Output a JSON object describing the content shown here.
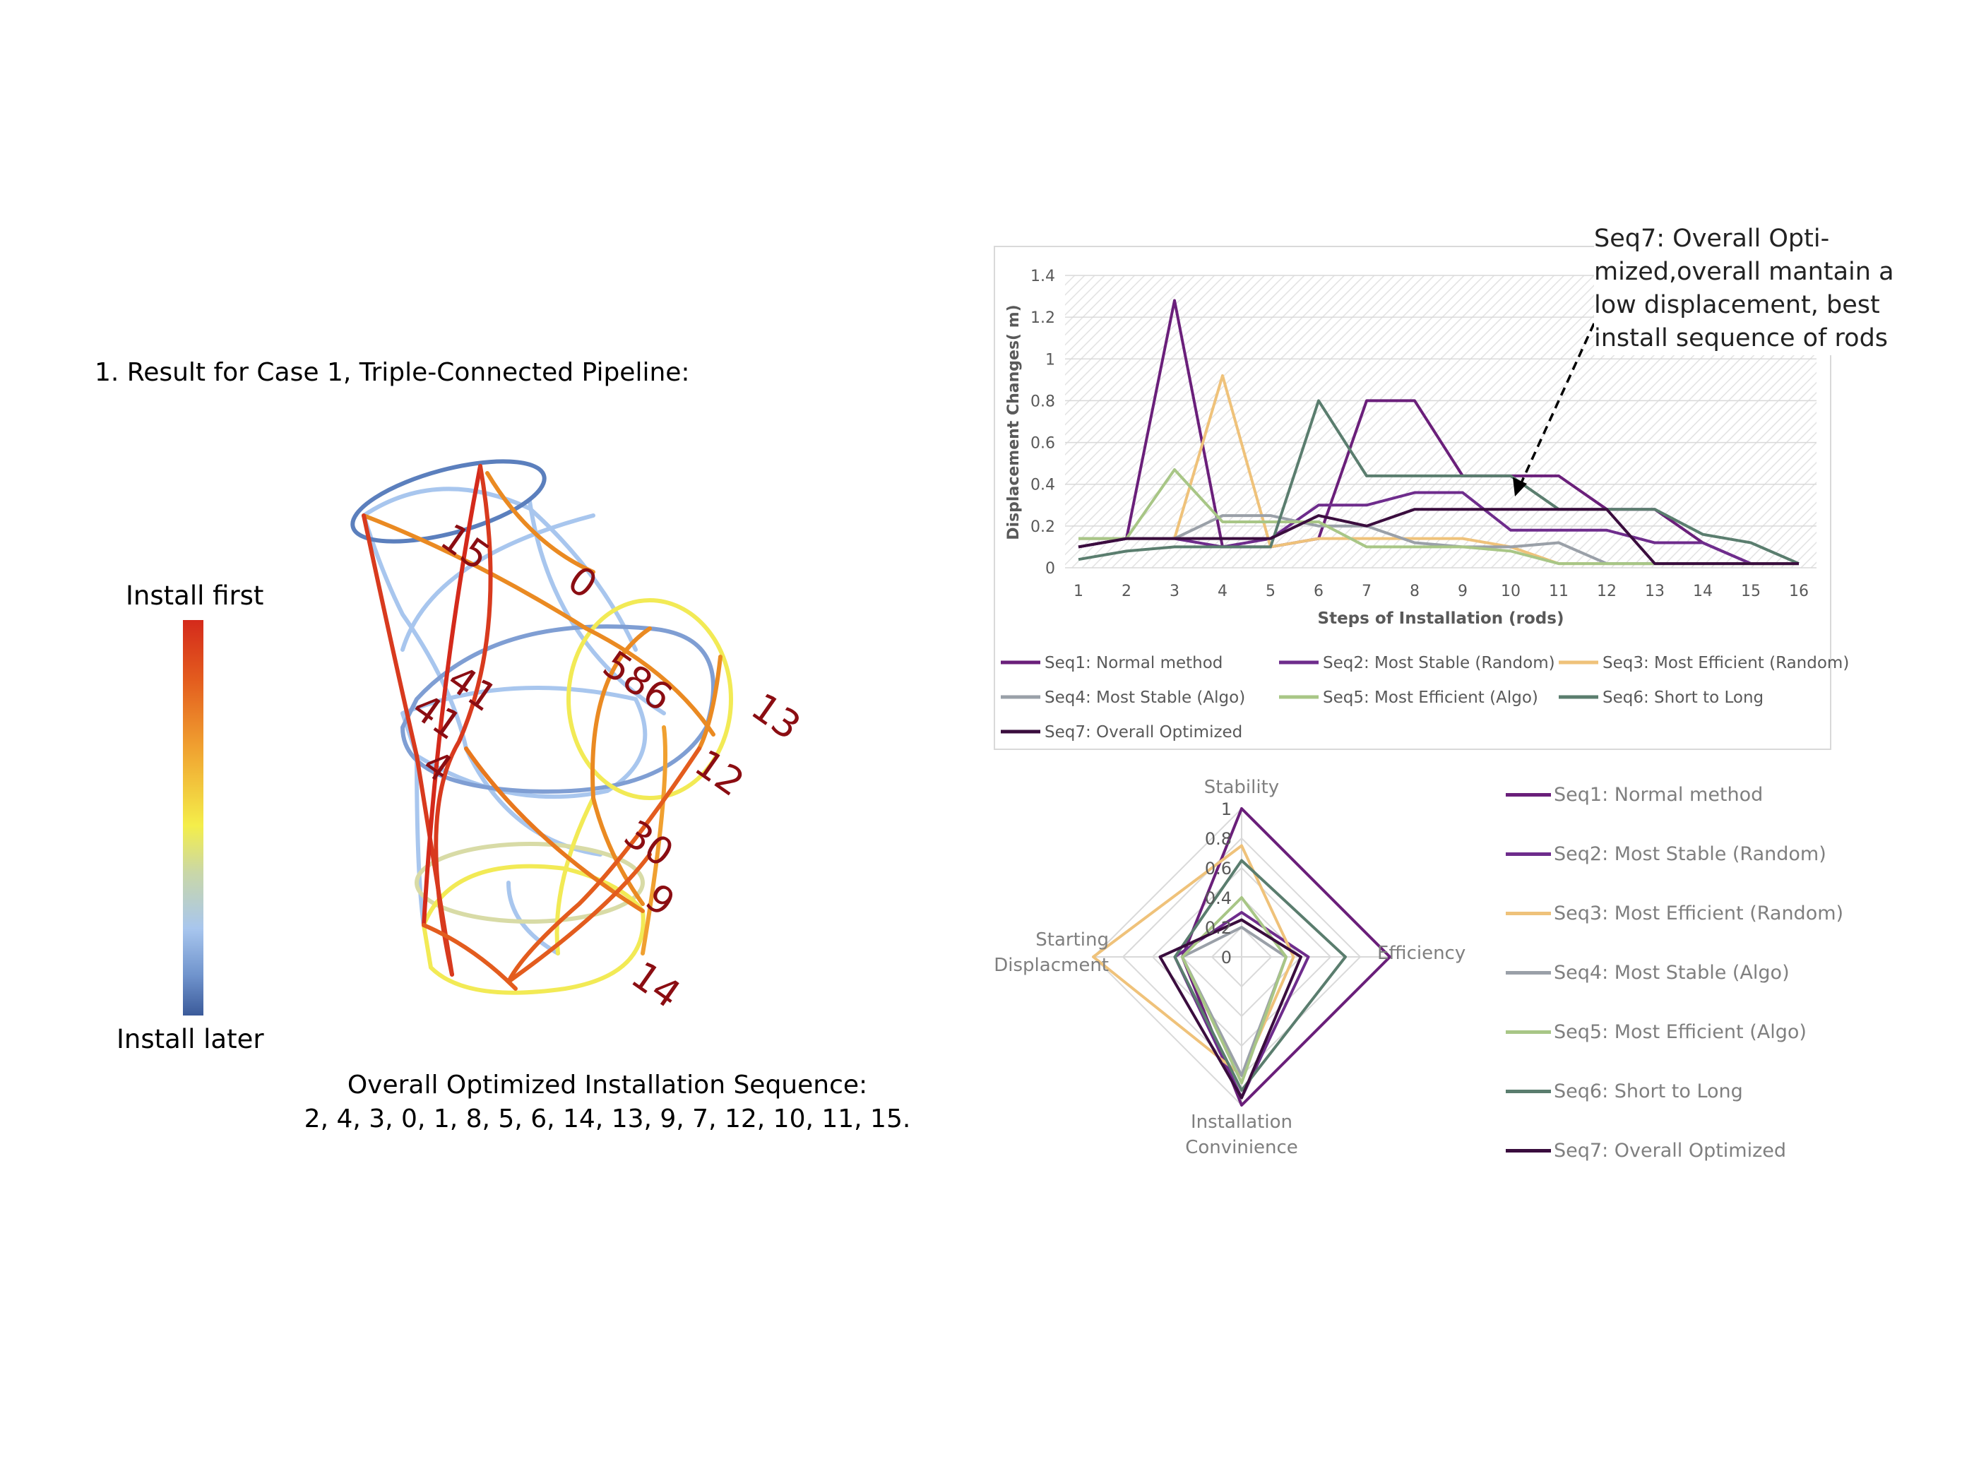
{
  "left": {
    "title": "1. Result for Case 1, Triple-Connected Pipeline:",
    "colorbar_top": "Install first",
    "colorbar_bottom": "Install later",
    "sequence_title": "Overall Optimized Installation Sequence:",
    "sequence_values": "2, 4, 3, 0, 1, 8, 5, 6, 14, 13, 9, 7, 12, 10, 11, 15.",
    "rod_labels": [
      "15",
      "0",
      "586",
      "13",
      "12",
      "30",
      "9",
      "14",
      "4",
      "41",
      "41"
    ]
  },
  "annotation": {
    "line1": "Seq7: Overall Opti-",
    "line2": "mized,overall mantain a",
    "line3": "low displacement, best",
    "line4": "install sequence of rods"
  },
  "chart_data": [
    {
      "type": "line",
      "xlabel": "Steps of Installation (rods)",
      "ylabel": "Displacement Changes( m)",
      "ylim": [
        0,
        1.4
      ],
      "yticks": [
        "0",
        "0.2",
        "0.4",
        "0.6",
        "0.8",
        "1",
        "1.2",
        "1.4"
      ],
      "x": [
        1,
        2,
        3,
        4,
        5,
        6,
        7,
        8,
        9,
        10,
        11,
        12,
        13,
        14,
        15,
        16
      ],
      "legend_position": "bottom",
      "series": [
        {
          "name": "Seq1:  Normal method",
          "color": "#6a1f7a",
          "values": [
            0.1,
            0.14,
            1.28,
            0.1,
            0.1,
            0.14,
            0.8,
            0.8,
            0.44,
            0.44,
            0.44,
            0.28,
            0.28,
            0.12,
            0.02,
            0.02
          ]
        },
        {
          "name": "Seq2:  Most Stable (Random)",
          "color": "#6e2c8c",
          "values": [
            0.1,
            0.14,
            0.14,
            0.1,
            0.14,
            0.3,
            0.3,
            0.36,
            0.36,
            0.18,
            0.18,
            0.18,
            0.12,
            0.12,
            0.02,
            0.02
          ]
        },
        {
          "name": "Seq3:  Most Efficient (Random)",
          "color": "#efc27a",
          "values": [
            0.14,
            0.14,
            0.14,
            0.92,
            0.1,
            0.14,
            0.14,
            0.14,
            0.14,
            0.1,
            0.02,
            0.02,
            0.02,
            0.02,
            0.02,
            0.02
          ]
        },
        {
          "name": "Seq4:  Most Stable (Algo)",
          "color": "#9aa0a8",
          "values": [
            0.14,
            0.14,
            0.14,
            0.25,
            0.25,
            0.2,
            0.2,
            0.12,
            0.1,
            0.1,
            0.12,
            0.02,
            0.02,
            0.02,
            0.02,
            0.02
          ]
        },
        {
          "name": "Seq5:  Most Efficient (Algo)",
          "color": "#a8c686",
          "values": [
            0.14,
            0.14,
            0.47,
            0.22,
            0.22,
            0.22,
            0.1,
            0.1,
            0.1,
            0.08,
            0.02,
            0.02,
            0.02,
            0.02,
            0.02,
            0.02
          ]
        },
        {
          "name": "Seq6:  Short to Long",
          "color": "#5a7d6e",
          "values": [
            0.04,
            0.08,
            0.1,
            0.1,
            0.1,
            0.8,
            0.44,
            0.44,
            0.44,
            0.44,
            0.28,
            0.28,
            0.28,
            0.16,
            0.12,
            0.02
          ]
        },
        {
          "name": "Seq7:  Overall Optimized",
          "color": "#3a0d3e",
          "values": [
            0.1,
            0.14,
            0.14,
            0.14,
            0.14,
            0.25,
            0.2,
            0.28,
            0.28,
            0.28,
            0.28,
            0.28,
            0.02,
            0.02,
            0.02,
            0.02
          ]
        }
      ]
    },
    {
      "type": "radar",
      "axes": [
        "Stability",
        "Efficiency",
        "Installation Convinience",
        "Starting Displacment"
      ],
      "rlim": [
        0,
        1
      ],
      "rticks": [
        "0",
        "0.2",
        "0.4",
        "0.6",
        "0.8",
        "1"
      ],
      "legend_position": "right",
      "series": [
        {
          "name": "Seq1:  Normal method",
          "color": "#6a1f7a",
          "values": [
            1.0,
            1.0,
            1.0,
            0.4
          ]
        },
        {
          "name": "Seq2:  Most Stable (Random)",
          "color": "#6e2c8c",
          "values": [
            0.3,
            0.45,
            0.95,
            0.45
          ]
        },
        {
          "name": "Seq3:  Most Efficient (Random)",
          "color": "#efc27a",
          "values": [
            0.75,
            0.35,
            0.8,
            1.0
          ]
        },
        {
          "name": "Seq4:  Most Stable (Algo)",
          "color": "#9aa0a8",
          "values": [
            0.2,
            0.3,
            0.8,
            0.4
          ]
        },
        {
          "name": "Seq5:  Most Efficient (Algo)",
          "color": "#a8c686",
          "values": [
            0.4,
            0.3,
            0.85,
            0.4
          ]
        },
        {
          "name": "Seq6:  Short to Long",
          "color": "#5a7d6e",
          "values": [
            0.65,
            0.7,
            0.9,
            0.45
          ]
        },
        {
          "name": "Seq7:  Overall Optimized",
          "color": "#3a0d3e",
          "values": [
            0.25,
            0.4,
            0.95,
            0.55
          ]
        }
      ]
    }
  ]
}
